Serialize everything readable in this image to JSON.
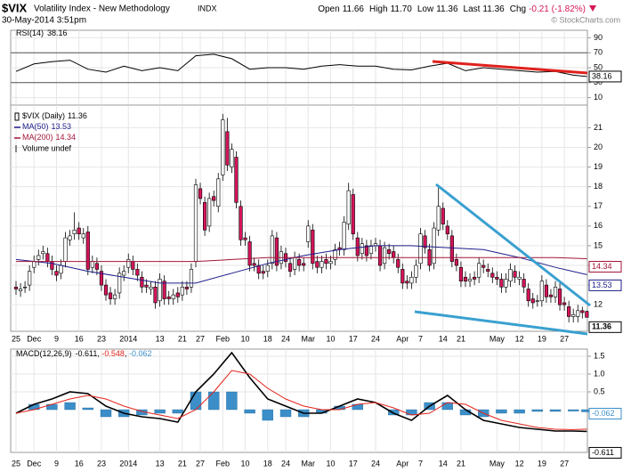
{
  "header": {
    "symbol": "$VIX",
    "name": "Volatility Index - New Methodology",
    "exchange": "INDX",
    "date": "30-May-2014 3:51pm",
    "quote": [
      {
        "label": "Open",
        "value": "11.66"
      },
      {
        "label": "High",
        "value": "11.70"
      },
      {
        "label": "Low",
        "value": "11.36"
      },
      {
        "label": "Last",
        "value": "11.36"
      },
      {
        "label": "Chg",
        "value": "-0.21 (-1.82%)"
      }
    ],
    "copyright": "© StockCharts.com"
  },
  "chart_data": [
    {
      "type": "line",
      "title": "RSI(14)",
      "last_label": "38.16",
      "color": "#000000",
      "x": [
        0,
        4,
        8,
        12,
        16,
        20,
        24,
        28,
        32,
        36,
        40,
        44,
        48,
        52,
        56,
        60,
        64,
        68,
        72,
        76,
        80,
        84,
        88,
        92,
        96,
        100,
        104,
        108,
        112,
        116,
        120,
        124,
        127
      ],
      "values": [
        45,
        55,
        58,
        60,
        48,
        44,
        52,
        46,
        50,
        46,
        66,
        68,
        62,
        48,
        50,
        50,
        48,
        52,
        54,
        52,
        52,
        48,
        47,
        52,
        56,
        46,
        50,
        48,
        46,
        44,
        45,
        40,
        38.16
      ],
      "ylim": [
        0,
        100
      ],
      "yticks": [
        90,
        70,
        50,
        30,
        10
      ],
      "reference_lines": [
        70,
        30
      ],
      "grid": true
    },
    {
      "type": "candlestick",
      "name": "$VIX (Daily)",
      "last_label": "11.36",
      "up_color": "#ffffff",
      "down_color": "#d4145a",
      "legend_extra": "Volume undef",
      "categories": [
        "25",
        null,
        null,
        null,
        "Dec",
        null,
        null,
        null,
        null,
        "9",
        null,
        null,
        null,
        null,
        "16",
        null,
        null,
        null,
        null,
        "23",
        null,
        null,
        null,
        null,
        null,
        "2014",
        null,
        null,
        null,
        null,
        null,
        null,
        "13",
        null,
        null,
        null,
        null,
        "21",
        null,
        null,
        null,
        "27",
        null,
        null,
        null,
        null,
        "Feb",
        null,
        null,
        null,
        null,
        "10",
        null,
        null,
        null,
        null,
        "18",
        null,
        null,
        null,
        "24",
        null,
        null,
        null,
        null,
        "Mar",
        null,
        null,
        null,
        null,
        "10",
        null,
        null,
        null,
        null,
        "17",
        null,
        null,
        null,
        null,
        "24",
        null,
        null,
        null,
        null,
        null,
        "Apr",
        null,
        null,
        null,
        "7",
        null,
        null,
        null,
        null,
        "14",
        null,
        null,
        null,
        "21",
        null,
        null,
        null,
        null,
        null,
        null,
        null,
        "May",
        null,
        null,
        null,
        null,
        "12",
        null,
        null,
        null,
        null,
        "19",
        null,
        null,
        null,
        null,
        "27",
        null,
        null,
        null,
        null,
        null
      ],
      "open": [
        12.9,
        12.7,
        12.9,
        13.0,
        13.9,
        14.3,
        14.6,
        14.6,
        14.2,
        13.7,
        13.6,
        14.2,
        15.3,
        15.6,
        15.9,
        15.4,
        15.7,
        13.9,
        14.1,
        13.7,
        13.0,
        12.6,
        12.3,
        12.6,
        13.5,
        13.9,
        14.2,
        13.8,
        13.4,
        13.0,
        12.8,
        12.9,
        12.2,
        13.2,
        12.4,
        12.3,
        12.6,
        12.5,
        12.9,
        12.9,
        14.2,
        17.9,
        17.2,
        16.0,
        17.5,
        17.0,
        18.6,
        20.8,
        19.0,
        19.5,
        17.0,
        15.4,
        15.2,
        14.1,
        14.0,
        13.7,
        13.7,
        14.1,
        15.4,
        14.1,
        14.6,
        14.1,
        13.8,
        14.3,
        14.1,
        15.2,
        15.8,
        14.2,
        13.9,
        14.3,
        14.1,
        14.3,
        14.9,
        14.8,
        16.1,
        17.6,
        15.4,
        14.6,
        15.0,
        14.6,
        15.0,
        15.0,
        14.1,
        14.8,
        14.7,
        14.3,
        13.8,
        13.2,
        13.1,
        13.4,
        14.1,
        15.5,
        14.8,
        14.1,
        15.8,
        16.9,
        16.0,
        15.5,
        14.3,
        13.9,
        13.4,
        13.2,
        13.4,
        13.4,
        14.0,
        13.8,
        13.6,
        13.4,
        13.3,
        12.9,
        13.2,
        13.7,
        13.3,
        13.3,
        12.8,
        12.3,
        12.2,
        12.2,
        13.0,
        12.5,
        12.4,
        12.8,
        12.1,
        11.9,
        11.4,
        11.4,
        11.7,
        11.66
      ],
      "high": [
        13.2,
        13.1,
        13.2,
        14.0,
        14.5,
        14.8,
        15.0,
        14.9,
        14.5,
        14.0,
        14.3,
        15.7,
        15.8,
        16.7,
        16.2,
        15.9,
        16.0,
        14.5,
        14.4,
        14.0,
        13.3,
        12.9,
        12.8,
        13.9,
        14.0,
        14.6,
        14.5,
        14.1,
        13.7,
        13.3,
        13.2,
        13.2,
        13.6,
        13.5,
        12.7,
        12.8,
        12.9,
        13.2,
        13.2,
        14.1,
        18.4,
        18.2,
        17.5,
        17.7,
        17.8,
        18.7,
        21.7,
        21.5,
        20.2,
        19.8,
        17.3,
        15.7,
        15.5,
        14.4,
        14.3,
        14.0,
        14.3,
        15.8,
        15.7,
        15.0,
        14.9,
        14.4,
        14.7,
        14.6,
        14.4,
        16.3,
        16.1,
        14.5,
        14.5,
        14.6,
        14.5,
        15.1,
        15.2,
        16.5,
        18.2,
        17.9,
        15.7,
        15.4,
        15.3,
        15.3,
        15.4,
        15.3,
        15.2,
        15.1,
        15.0,
        14.6,
        14.1,
        13.5,
        13.7,
        14.3,
        15.9,
        15.8,
        15.1,
        16.2,
        18.0,
        17.2,
        16.3,
        15.8,
        14.6,
        14.2,
        13.7,
        13.6,
        13.7,
        14.4,
        14.3,
        14.1,
        13.9,
        13.7,
        13.6,
        13.6,
        14.1,
        14.0,
        13.7,
        13.6,
        13.1,
        12.6,
        12.5,
        13.5,
        13.3,
        12.8,
        13.2,
        13.1,
        12.4,
        12.2,
        11.8,
        12.0,
        11.9,
        11.7
      ],
      "low": [
        12.5,
        12.4,
        12.6,
        12.7,
        13.6,
        14.0,
        14.3,
        13.9,
        13.5,
        13.2,
        13.3,
        13.9,
        15.0,
        15.3,
        15.3,
        15.1,
        13.5,
        13.6,
        13.5,
        12.7,
        12.2,
        12.0,
        12.0,
        12.3,
        13.2,
        13.6,
        13.5,
        13.2,
        12.6,
        12.6,
        12.5,
        11.8,
        11.9,
        12.0,
        12.0,
        12.0,
        12.1,
        12.2,
        12.5,
        12.6,
        13.9,
        17.1,
        15.5,
        15.7,
        17.0,
        16.7,
        18.3,
        18.8,
        18.7,
        16.9,
        15.0,
        15.0,
        13.7,
        13.7,
        13.3,
        13.3,
        13.4,
        13.8,
        13.7,
        13.8,
        13.9,
        13.4,
        13.5,
        13.7,
        13.7,
        14.9,
        13.8,
        13.6,
        13.6,
        13.8,
        13.8,
        14.0,
        14.5,
        14.5,
        15.8,
        15.3,
        14.2,
        14.3,
        14.2,
        14.3,
        14.7,
        13.7,
        13.8,
        14.3,
        14.1,
        13.6,
        12.8,
        12.8,
        12.8,
        13.1,
        13.8,
        14.6,
        13.7,
        13.8,
        15.5,
        15.8,
        15.3,
        13.9,
        13.7,
        12.9,
        12.9,
        12.9,
        13.0,
        13.1,
        13.6,
        13.4,
        13.1,
        13.0,
        12.6,
        12.6,
        12.9,
        13.1,
        13.0,
        12.6,
        11.9,
        11.8,
        11.9,
        11.9,
        12.1,
        12.1,
        12.1,
        11.7,
        11.7,
        11.1,
        11.1,
        11.1,
        11.3,
        11.36
      ],
      "close": [
        12.8,
        12.8,
        12.9,
        13.7,
        14.2,
        14.5,
        14.7,
        14.2,
        13.8,
        13.5,
        14.0,
        15.4,
        15.5,
        15.8,
        15.6,
        15.6,
        13.8,
        14.2,
        13.8,
        13.0,
        12.5,
        12.3,
        12.5,
        13.6,
        13.7,
        14.3,
        13.8,
        13.5,
        12.9,
        12.9,
        12.9,
        12.1,
        13.3,
        12.3,
        12.3,
        12.5,
        12.4,
        12.9,
        12.8,
        13.8,
        18.1,
        17.4,
        15.8,
        17.4,
        17.3,
        18.4,
        21.4,
        19.1,
        19.9,
        17.2,
        15.3,
        15.3,
        14.0,
        14.0,
        13.6,
        13.6,
        14.0,
        15.5,
        14.0,
        14.7,
        14.2,
        13.7,
        14.4,
        14.0,
        14.0,
        16.0,
        14.1,
        13.9,
        14.2,
        14.1,
        14.2,
        14.8,
        14.8,
        16.2,
        17.8,
        15.6,
        14.5,
        15.1,
        14.5,
        15.0,
        15.1,
        14.0,
        14.9,
        14.6,
        14.4,
        13.9,
        13.1,
        13.1,
        13.4,
        14.0,
        15.6,
        14.9,
        14.0,
        15.9,
        17.0,
        16.1,
        15.6,
        14.2,
        14.0,
        13.2,
        13.2,
        13.3,
        13.3,
        14.1,
        13.9,
        13.7,
        13.4,
        13.3,
        12.9,
        13.3,
        13.8,
        13.4,
        13.4,
        12.9,
        12.2,
        12.1,
        12.2,
        13.2,
        12.4,
        12.4,
        12.9,
        12.0,
        12.0,
        11.4,
        11.5,
        11.7,
        11.6,
        11.36
      ],
      "overlays": [
        {
          "name": "MA(50)",
          "color": "#1c1c8c",
          "last_label": "13.53",
          "x": [
            0,
            8,
            16,
            24,
            32,
            40,
            48,
            56,
            64,
            72,
            80,
            88,
            96,
            104,
            112,
            120,
            127
          ],
          "values": [
            14.3,
            14.1,
            13.7,
            13.4,
            13.1,
            13.1,
            13.6,
            14.1,
            14.5,
            14.8,
            15.0,
            15.0,
            14.9,
            14.8,
            14.4,
            13.9,
            13.53
          ]
        },
        {
          "name": "MA(200)",
          "color": "#a3163a",
          "last_label": "14.34",
          "x": [
            0,
            8,
            16,
            24,
            32,
            40,
            48,
            56,
            64,
            72,
            80,
            88,
            96,
            104,
            112,
            120,
            127
          ],
          "values": [
            14.2,
            14.2,
            14.2,
            14.2,
            14.2,
            14.2,
            14.3,
            14.4,
            14.4,
            14.4,
            14.4,
            14.4,
            14.4,
            14.4,
            14.4,
            14.4,
            14.34
          ]
        }
      ],
      "ylim": [
        10.65,
        22.15
      ],
      "yticks": [
        12,
        13,
        14,
        15,
        16,
        17,
        18,
        19,
        20,
        21
      ],
      "grid": true
    },
    {
      "type": "macd",
      "title": "MACD(12,26,9)",
      "separator": ", ",
      "x": [
        0,
        4,
        8,
        12,
        16,
        20,
        24,
        28,
        32,
        36,
        40,
        44,
        48,
        52,
        56,
        60,
        64,
        68,
        72,
        76,
        80,
        84,
        88,
        92,
        96,
        100,
        104,
        108,
        112,
        116,
        120,
        124,
        127
      ],
      "series": [
        {
          "kind": "line",
          "color": "#000000",
          "last_label": "-0.611",
          "box": true,
          "values": [
            -0.1,
            0.15,
            0.3,
            0.5,
            0.45,
            0.1,
            -0.1,
            -0.2,
            -0.25,
            -0.35,
            0.5,
            1.0,
            1.6,
            0.9,
            0.3,
            0.1,
            -0.1,
            -0.1,
            0.1,
            0.3,
            0.2,
            -0.1,
            -0.3,
            0.1,
            0.4,
            0.0,
            -0.3,
            -0.4,
            -0.5,
            -0.55,
            -0.6,
            -0.6,
            -0.611
          ]
        },
        {
          "kind": "line",
          "color": "#e3241b",
          "last_label": "-0.548",
          "box": false,
          "values": [
            -0.1,
            0.0,
            0.15,
            0.3,
            0.4,
            0.3,
            0.1,
            -0.05,
            -0.15,
            -0.25,
            0.0,
            0.5,
            1.1,
            1.0,
            0.6,
            0.3,
            0.1,
            0.0,
            0.0,
            0.15,
            0.2,
            0.05,
            -0.15,
            -0.1,
            0.2,
            0.15,
            -0.1,
            -0.3,
            -0.4,
            -0.5,
            -0.55,
            -0.56,
            -0.548
          ]
        },
        {
          "kind": "bar",
          "color": "#3b8ec8",
          "last_label": "-0.062",
          "box": true,
          "values": [
            0,
            0.15,
            0.15,
            0.2,
            0.05,
            -0.2,
            -0.2,
            -0.15,
            -0.1,
            -0.1,
            0.5,
            0.5,
            0.5,
            -0.1,
            -0.3,
            -0.2,
            -0.2,
            -0.1,
            0.1,
            0.15,
            0,
            -0.15,
            -0.15,
            0.2,
            0.2,
            -0.15,
            -0.2,
            -0.1,
            -0.1,
            -0.05,
            -0.05,
            -0.04,
            -0.062
          ]
        }
      ],
      "ylim": [
        -1.2,
        1.7
      ],
      "yticks": [
        1.5,
        {
          "value": 1,
          "label": "1.0"
        },
        0.5
      ],
      "grid": true
    }
  ]
}
